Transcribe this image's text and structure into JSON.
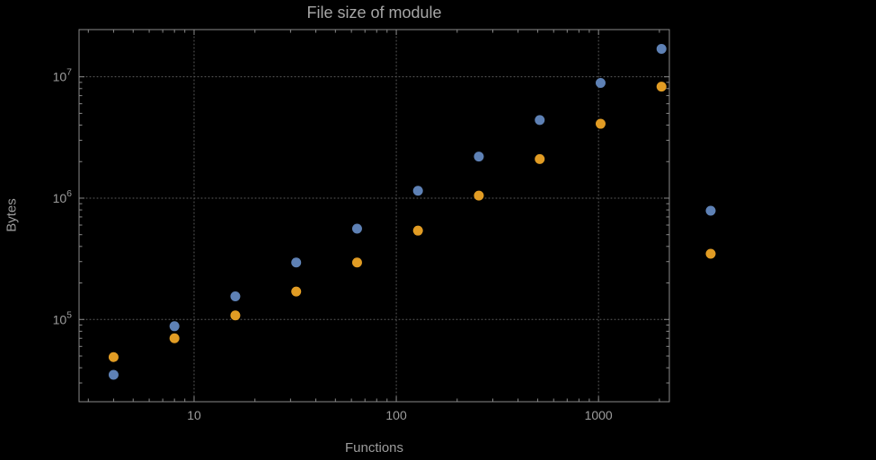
{
  "title": "File size of module",
  "axes": {
    "xlabel": "Functions",
    "ylabel": "Bytes"
  },
  "colors": {
    "background": "#000000",
    "frame": "#8a8a8a",
    "grid": "#5e5e5e",
    "tick_text": "#9c9c9c",
    "blue": "#5e81b5",
    "orange": "#e19c24"
  },
  "chart_data": {
    "type": "scatter",
    "title": "File size of module",
    "xlabel": "Functions",
    "ylabel": "Bytes",
    "x_scale": "log",
    "y_scale": "log",
    "grid": "dotted",
    "x": [
      4,
      8,
      16,
      32,
      64,
      128,
      256,
      512,
      1024,
      2048
    ],
    "series": [
      {
        "name": "blue-series",
        "color": "#5e81b5",
        "values": [
          35000,
          88000,
          155000,
          295000,
          560000,
          1150000,
          2200000,
          4400000,
          8900000,
          17000000
        ]
      },
      {
        "name": "orange-series",
        "color": "#e19c24",
        "values": [
          49000,
          70000,
          108000,
          170000,
          295000,
          540000,
          1050000,
          2100000,
          4100000,
          8300000
        ]
      }
    ],
    "x_ticks": [
      10,
      100,
      1000
    ],
    "x_tick_labels": [
      "10",
      "100",
      "1000"
    ],
    "y_ticks": [
      100000,
      1000000,
      10000000
    ],
    "y_tick_labels": [
      "10^5",
      "10^6",
      "10^7"
    ],
    "xlim": [
      2.7,
      2240
    ],
    "ylim": [
      21000,
      24500000
    ],
    "legend_position": "right"
  },
  "legend": {
    "labels_visible": false,
    "markers": [
      {
        "series": "blue-series",
        "color": "#5e81b5"
      },
      {
        "series": "orange-series",
        "color": "#e19c24"
      }
    ]
  }
}
